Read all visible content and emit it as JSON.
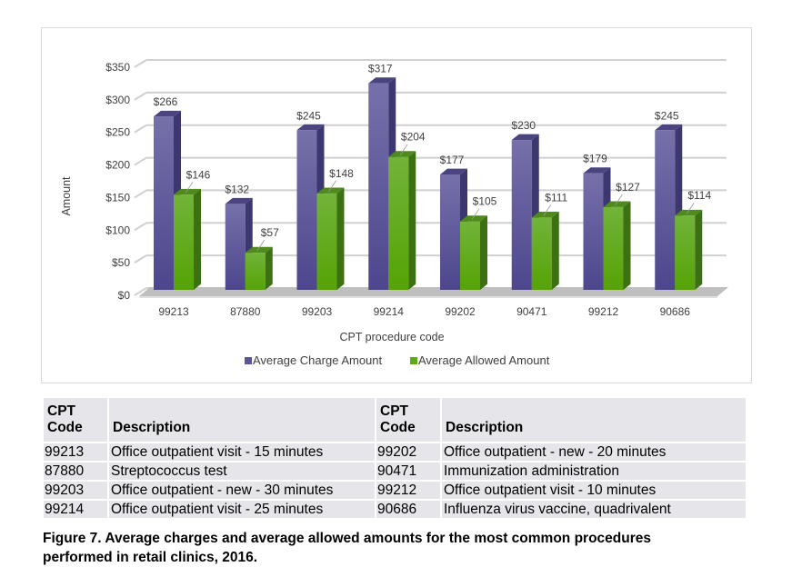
{
  "chart_data": {
    "type": "bar",
    "style": "3d-clustered-column",
    "title": "",
    "xlabel": "CPT procedure code",
    "ylabel": "Amount",
    "ylim": [
      0,
      350
    ],
    "yticks": [
      0,
      50,
      100,
      150,
      200,
      250,
      300,
      350
    ],
    "ytick_labels": [
      "$0",
      "$50",
      "$100",
      "$150",
      "$200",
      "$250",
      "$300",
      "$350"
    ],
    "grid": true,
    "legend_position": "bottom",
    "categories": [
      "99213",
      "87880",
      "99203",
      "99214",
      "99202",
      "90471",
      "99212",
      "90686"
    ],
    "series": [
      {
        "name": "Average Charge Amount",
        "color": "#5b5498",
        "values": [
          266,
          132,
          245,
          317,
          177,
          230,
          179,
          245
        ],
        "labels": [
          "$266",
          "$132",
          "$245",
          "$317",
          "$177",
          "$230",
          "$179",
          "$245"
        ]
      },
      {
        "name": "Average Allowed Amount",
        "color": "#5fa81a",
        "values": [
          146,
          57,
          148,
          204,
          105,
          111,
          127,
          114
        ],
        "labels": [
          "$146",
          "$57",
          "$148",
          "$204",
          "$105",
          "$111",
          "$127",
          "$114"
        ]
      }
    ]
  },
  "table": {
    "headers": [
      {
        "line1": "CPT",
        "line2": "Code"
      },
      {
        "line1": "",
        "line2": "Description"
      },
      {
        "line1": "CPT",
        "line2": "Code"
      },
      {
        "line1": "",
        "line2": "Description"
      }
    ],
    "rows": [
      {
        "code1": "99213",
        "desc1": "Office outpatient visit - 15 minutes",
        "code2": "99202",
        "desc2": "Office outpatient - new - 20 minutes"
      },
      {
        "code1": "87880",
        "desc1": "Streptococcus test",
        "code2": "90471",
        "desc2": "Immunization administration"
      },
      {
        "code1": "99203",
        "desc1": "Office outpatient - new - 30 minutes",
        "code2": "99212",
        "desc2": "Office outpatient visit - 10 minutes"
      },
      {
        "code1": "99214",
        "desc1": "Office outpatient visit - 25 minutes",
        "code2": "90686",
        "desc2": "Influenza virus vaccine, quadrivalent"
      }
    ]
  },
  "caption": {
    "line1": "Figure 7. Average charges and average allowed amounts for the most common procedures",
    "line2": "performed in retail clinics, 2016."
  }
}
